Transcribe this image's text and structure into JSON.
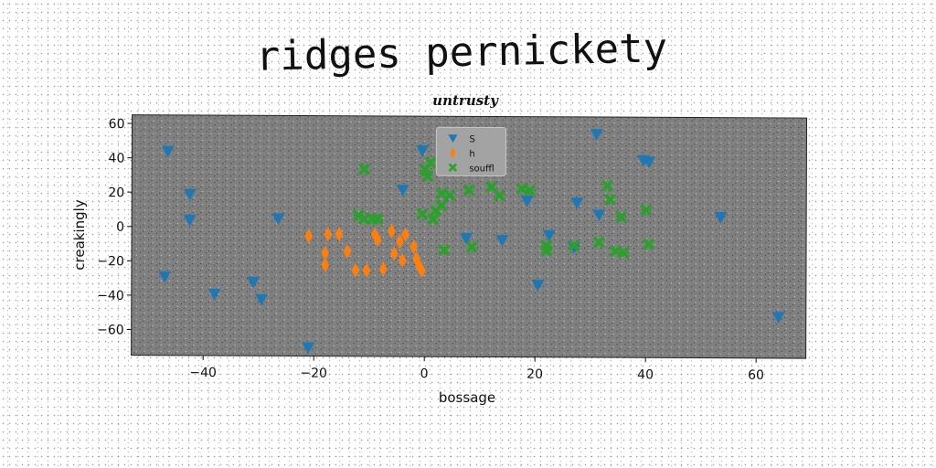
{
  "chart_data": {
    "type": "scatter",
    "suptitle": "ridges pernickety",
    "title": "untrusty",
    "xlabel": "bossage",
    "ylabel": "creakingly",
    "xlim": [
      -53,
      69
    ],
    "ylim": [
      -75,
      65
    ],
    "xticks": [
      -40,
      -20,
      0,
      20,
      40,
      60
    ],
    "yticks": [
      -60,
      -40,
      -20,
      0,
      20,
      40,
      60
    ],
    "grid": false,
    "legend_position": "top-center",
    "plot_background": "#808080",
    "series": [
      {
        "name": "S",
        "marker": "triangle-down",
        "color": "#1f77b4",
        "points": [
          [
            -46.5,
            44
          ],
          [
            -42.5,
            19
          ],
          [
            -42.5,
            4
          ],
          [
            -47,
            -29
          ],
          [
            -38,
            -39
          ],
          [
            -31,
            -32
          ],
          [
            -29.5,
            -42
          ],
          [
            -26.5,
            5
          ],
          [
            -21,
            -70
          ],
          [
            -0.5,
            45
          ],
          [
            -4,
            22
          ],
          [
            7.5,
            -6
          ],
          [
            14,
            -7
          ],
          [
            18.5,
            16
          ],
          [
            20.5,
            -33
          ],
          [
            22.5,
            -4
          ],
          [
            27,
            -11
          ],
          [
            27.5,
            15
          ],
          [
            31,
            55
          ],
          [
            31.5,
            8
          ],
          [
            39.5,
            40
          ],
          [
            40.5,
            39
          ],
          [
            53.5,
            7
          ],
          [
            64,
            -51
          ]
        ]
      },
      {
        "name": "h",
        "marker": "thin-diamond",
        "color": "#ff7f0e",
        "points": [
          [
            -21,
            -5
          ],
          [
            -17.5,
            -4
          ],
          [
            -15.5,
            -4
          ],
          [
            -18,
            -15
          ],
          [
            -18,
            -22
          ],
          [
            -14,
            -14
          ],
          [
            -12.5,
            -25
          ],
          [
            -10.5,
            -25
          ],
          [
            -8.5,
            -7
          ],
          [
            -7.5,
            -24
          ],
          [
            -5.5,
            -15
          ],
          [
            -4.5,
            -8
          ],
          [
            -3.5,
            -4
          ],
          [
            -2,
            -11
          ],
          [
            -1.5,
            -18
          ],
          [
            -1,
            -22
          ],
          [
            -0.5,
            -25
          ],
          [
            -4,
            -19
          ],
          [
            -6,
            -2
          ],
          [
            -9,
            -4
          ]
        ]
      },
      {
        "name": "souffl",
        "marker": "x-filled",
        "color": "#2ca02c",
        "points": [
          [
            -11,
            34
          ],
          [
            -11,
            5
          ],
          [
            -9.5,
            5
          ],
          [
            -8.5,
            5
          ],
          [
            0,
            34
          ],
          [
            0.5,
            30
          ],
          [
            1,
            38
          ],
          [
            -0.5,
            8
          ],
          [
            1.5,
            5
          ],
          [
            2,
            10
          ],
          [
            3,
            20
          ],
          [
            4.5,
            19
          ],
          [
            3.5,
            -13
          ],
          [
            8,
            22
          ],
          [
            8.5,
            -11
          ],
          [
            12,
            24
          ],
          [
            13.5,
            19
          ],
          [
            17.5,
            23
          ],
          [
            19,
            22
          ],
          [
            22,
            -10
          ],
          [
            22,
            -13
          ],
          [
            27,
            -10
          ],
          [
            31.5,
            -8
          ],
          [
            33,
            25
          ],
          [
            33.5,
            17
          ],
          [
            34.5,
            -13
          ],
          [
            35.5,
            7
          ],
          [
            36,
            -14
          ],
          [
            40,
            11
          ],
          [
            40.5,
            -9
          ],
          [
            -12,
            7
          ],
          [
            3,
            13
          ]
        ]
      }
    ]
  }
}
